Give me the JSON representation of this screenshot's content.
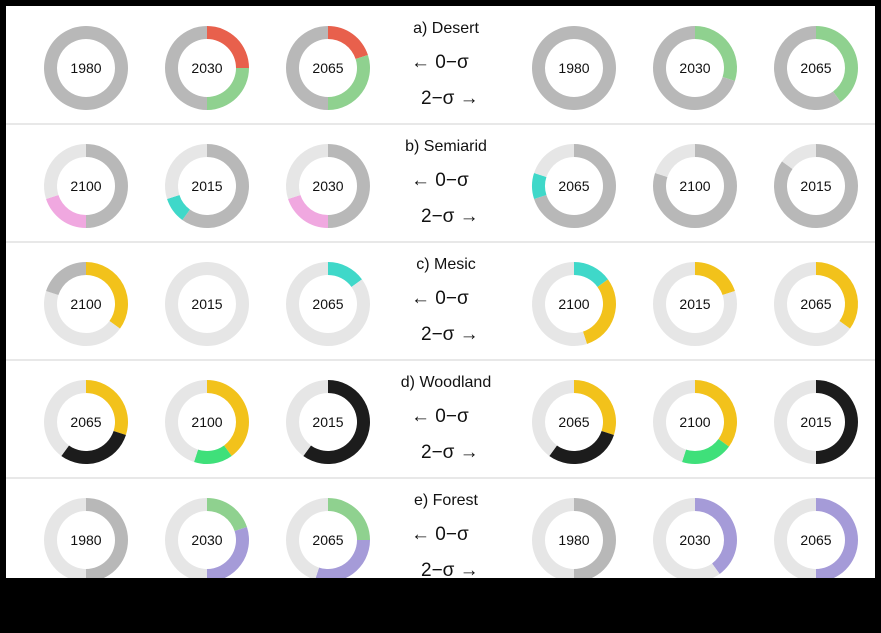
{
  "colors": {
    "grey": "#b8b8b8",
    "light": "#e6e6e6",
    "red": "#e8604c",
    "green": "#8fd18f",
    "purple": "#a59bd8",
    "yellow": "#f2c21b",
    "teal": "#3fd8c9",
    "bright_green": "#3fe07a",
    "dark": "#1c1c1c",
    "pink": "#f0a8e0"
  },
  "chart_data": {
    "type": "pie",
    "panels": [
      {
        "title": "a) Desert",
        "left_years": [
          "1980",
          "2030",
          "2065"
        ],
        "right_years": [
          "1980",
          "2030",
          "2065"
        ],
        "left_arrow": "←  0−σ",
        "right_arrow": "2−σ  →",
        "left_donuts": [
          {
            "label": "1980",
            "slices": [
              {
                "color": "grey",
                "value": 1.0
              }
            ]
          },
          {
            "label": "2030",
            "slices": [
              {
                "color": "red",
                "value": 0.25
              },
              {
                "color": "green",
                "value": 0.25
              },
              {
                "color": "grey",
                "value": 0.5
              }
            ]
          },
          {
            "label": "2065",
            "slices": [
              {
                "color": "red",
                "value": 0.2
              },
              {
                "color": "green",
                "value": 0.3
              },
              {
                "color": "grey",
                "value": 0.5
              }
            ]
          }
        ],
        "right_donuts": [
          {
            "label": "1980",
            "slices": [
              {
                "color": "grey",
                "value": 1.0
              }
            ]
          },
          {
            "label": "2030",
            "slices": [
              {
                "color": "green",
                "value": 0.3
              },
              {
                "color": "grey",
                "value": 0.7
              }
            ]
          },
          {
            "label": "2065",
            "slices": [
              {
                "color": "green",
                "value": 0.4
              },
              {
                "color": "grey",
                "value": 0.6
              }
            ]
          }
        ]
      },
      {
        "title": "b) Semiarid",
        "left_years": [
          "2100",
          "2015",
          "2030"
        ],
        "right_years": [
          "2065",
          "2100",
          "2015"
        ],
        "left_arrow": "←  0−σ",
        "right_arrow": "2−σ  →",
        "left_donuts": [
          {
            "label": "2100",
            "slices": [
              {
                "color": "grey",
                "value": 0.5
              },
              {
                "color": "pink",
                "value": 0.2
              },
              {
                "color": "light",
                "value": 0.3
              }
            ]
          },
          {
            "label": "2015",
            "slices": [
              {
                "color": "grey",
                "value": 0.6
              },
              {
                "color": "teal",
                "value": 0.1
              },
              {
                "color": "light",
                "value": 0.3
              }
            ]
          },
          {
            "label": "2030",
            "slices": [
              {
                "color": "grey",
                "value": 0.5
              },
              {
                "color": "pink",
                "value": 0.2
              },
              {
                "color": "light",
                "value": 0.3
              }
            ]
          }
        ],
        "right_donuts": [
          {
            "label": "2065",
            "slices": [
              {
                "color": "grey",
                "value": 0.7
              },
              {
                "color": "teal",
                "value": 0.1
              },
              {
                "color": "light",
                "value": 0.2
              }
            ]
          },
          {
            "label": "2100",
            "slices": [
              {
                "color": "grey",
                "value": 0.8
              },
              {
                "color": "light",
                "value": 0.2
              }
            ]
          },
          {
            "label": "2015",
            "slices": [
              {
                "color": "grey",
                "value": 0.85
              },
              {
                "color": "light",
                "value": 0.15
              }
            ]
          }
        ]
      },
      {
        "title": "c) Mesic",
        "left_years": [
          "2100",
          "2015",
          "2065"
        ],
        "right_years": [
          "2100",
          "2015",
          "2065"
        ],
        "left_arrow": "←  0−σ",
        "right_arrow": "2−σ  →",
        "left_donuts": [
          {
            "label": "2100",
            "slices": [
              {
                "color": "yellow",
                "value": 0.35
              },
              {
                "color": "light",
                "value": 0.45
              },
              {
                "color": "grey",
                "value": 0.2
              }
            ]
          },
          {
            "label": "2015",
            "slices": [
              {
                "color": "light",
                "value": 1.0
              }
            ]
          },
          {
            "label": "2065",
            "slices": [
              {
                "color": "teal",
                "value": 0.15
              },
              {
                "color": "light",
                "value": 0.85
              }
            ]
          }
        ],
        "right_donuts": [
          {
            "label": "2100",
            "slices": [
              {
                "color": "teal",
                "value": 0.15
              },
              {
                "color": "yellow",
                "value": 0.3
              },
              {
                "color": "light",
                "value": 0.55
              }
            ]
          },
          {
            "label": "2015",
            "slices": [
              {
                "color": "yellow",
                "value": 0.2
              },
              {
                "color": "light",
                "value": 0.8
              }
            ]
          },
          {
            "label": "2065",
            "slices": [
              {
                "color": "yellow",
                "value": 0.35
              },
              {
                "color": "light",
                "value": 0.65
              }
            ]
          }
        ]
      },
      {
        "title": "d) Woodland",
        "left_years": [
          "2065",
          "2100",
          "2015"
        ],
        "right_years": [
          "2065",
          "2100",
          "2015"
        ],
        "left_arrow": "←  0−σ",
        "right_arrow": "2−σ  →",
        "left_donuts": [
          {
            "label": "2065",
            "slices": [
              {
                "color": "yellow",
                "value": 0.3
              },
              {
                "color": "dark",
                "value": 0.3
              },
              {
                "color": "light",
                "value": 0.4
              }
            ]
          },
          {
            "label": "2100",
            "slices": [
              {
                "color": "yellow",
                "value": 0.4
              },
              {
                "color": "bright_green",
                "value": 0.15
              },
              {
                "color": "light",
                "value": 0.45
              }
            ]
          },
          {
            "label": "2015",
            "slices": [
              {
                "color": "dark",
                "value": 0.6
              },
              {
                "color": "light",
                "value": 0.4
              }
            ]
          }
        ],
        "right_donuts": [
          {
            "label": "2065",
            "slices": [
              {
                "color": "yellow",
                "value": 0.3
              },
              {
                "color": "dark",
                "value": 0.3
              },
              {
                "color": "light",
                "value": 0.4
              }
            ]
          },
          {
            "label": "2100",
            "slices": [
              {
                "color": "yellow",
                "value": 0.35
              },
              {
                "color": "bright_green",
                "value": 0.2
              },
              {
                "color": "light",
                "value": 0.45
              }
            ]
          },
          {
            "label": "2015",
            "slices": [
              {
                "color": "dark",
                "value": 0.5
              },
              {
                "color": "light",
                "value": 0.5
              }
            ]
          }
        ]
      },
      {
        "title": "e) Forest",
        "left_years": [
          "1980",
          "2030",
          "2065"
        ],
        "right_years": [
          "1980",
          "2030",
          "2065"
        ],
        "left_arrow": "←  0−σ",
        "right_arrow": "2−σ  →",
        "left_donuts": [
          {
            "label": "1980",
            "slices": [
              {
                "color": "grey",
                "value": 0.5
              },
              {
                "color": "light",
                "value": 0.5
              }
            ]
          },
          {
            "label": "2030",
            "slices": [
              {
                "color": "green",
                "value": 0.2
              },
              {
                "color": "purple",
                "value": 0.3
              },
              {
                "color": "light",
                "value": 0.5
              }
            ]
          },
          {
            "label": "2065",
            "slices": [
              {
                "color": "green",
                "value": 0.25
              },
              {
                "color": "purple",
                "value": 0.3
              },
              {
                "color": "light",
                "value": 0.45
              }
            ]
          }
        ],
        "right_donuts": [
          {
            "label": "1980",
            "slices": [
              {
                "color": "grey",
                "value": 0.5
              },
              {
                "color": "light",
                "value": 0.5
              }
            ]
          },
          {
            "label": "2030",
            "slices": [
              {
                "color": "purple",
                "value": 0.4
              },
              {
                "color": "light",
                "value": 0.6
              }
            ]
          },
          {
            "label": "2065",
            "slices": [
              {
                "color": "purple",
                "value": 0.5
              },
              {
                "color": "light",
                "value": 0.5
              }
            ]
          }
        ]
      }
    ]
  }
}
